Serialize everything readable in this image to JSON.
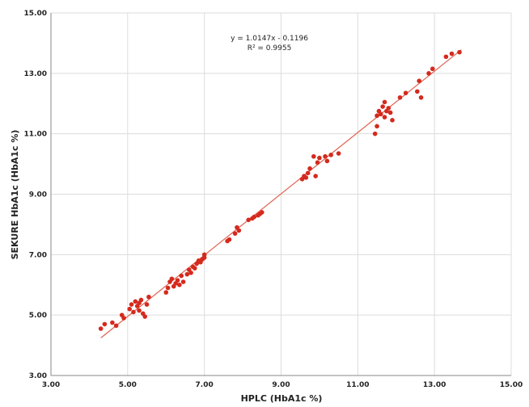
{
  "chart_data": {
    "type": "scatter",
    "title": "",
    "xlabel": "HPLC (HbA1c %)",
    "ylabel": "SEKURE HbA1c (HbA1c %)",
    "xlim": [
      3.0,
      15.0
    ],
    "ylim": [
      3.0,
      15.0
    ],
    "x_ticks": [
      "3.00",
      "5.00",
      "7.00",
      "9.00",
      "11.00",
      "13.00",
      "15.00"
    ],
    "y_ticks": [
      "3.00",
      "5.00",
      "7.00",
      "9.00",
      "11.00",
      "13.00",
      "15.00"
    ],
    "grid": true,
    "point_color": "#d42a1e",
    "line_color": "#e0624f",
    "annotations": [
      "y = 1.0147x - 0.1196",
      "R² = 0.9955"
    ],
    "trendline": {
      "slope": 1.0147,
      "intercept": -0.1196,
      "x_range": [
        4.3,
        13.7
      ]
    },
    "points": [
      [
        4.3,
        4.55
      ],
      [
        4.4,
        4.7
      ],
      [
        4.6,
        4.75
      ],
      [
        4.7,
        4.65
      ],
      [
        4.85,
        5.0
      ],
      [
        4.9,
        4.9
      ],
      [
        5.05,
        5.2
      ],
      [
        5.1,
        5.35
      ],
      [
        5.15,
        5.1
      ],
      [
        5.2,
        5.45
      ],
      [
        5.25,
        5.3
      ],
      [
        5.3,
        5.15
      ],
      [
        5.3,
        5.4
      ],
      [
        5.35,
        5.5
      ],
      [
        5.4,
        5.05
      ],
      [
        5.45,
        4.95
      ],
      [
        5.5,
        5.35
      ],
      [
        5.55,
        5.6
      ],
      [
        6.0,
        5.75
      ],
      [
        6.05,
        5.9
      ],
      [
        6.1,
        6.1
      ],
      [
        6.15,
        6.2
      ],
      [
        6.2,
        5.95
      ],
      [
        6.25,
        6.05
      ],
      [
        6.3,
        6.15
      ],
      [
        6.35,
        6.0
      ],
      [
        6.4,
        6.3
      ],
      [
        6.45,
        6.1
      ],
      [
        6.55,
        6.35
      ],
      [
        6.6,
        6.5
      ],
      [
        6.65,
        6.4
      ],
      [
        6.7,
        6.6
      ],
      [
        6.75,
        6.55
      ],
      [
        6.8,
        6.7
      ],
      [
        6.85,
        6.8
      ],
      [
        6.9,
        6.75
      ],
      [
        6.95,
        6.85
      ],
      [
        7.0,
        6.9
      ],
      [
        7.0,
        7.0
      ],
      [
        7.6,
        7.45
      ],
      [
        7.65,
        7.5
      ],
      [
        7.8,
        7.7
      ],
      [
        7.85,
        7.9
      ],
      [
        7.9,
        7.8
      ],
      [
        8.15,
        8.15
      ],
      [
        8.25,
        8.2
      ],
      [
        8.3,
        8.25
      ],
      [
        8.4,
        8.3
      ],
      [
        8.45,
        8.35
      ],
      [
        8.5,
        8.4
      ],
      [
        9.55,
        9.5
      ],
      [
        9.6,
        9.6
      ],
      [
        9.65,
        9.55
      ],
      [
        9.7,
        9.7
      ],
      [
        9.75,
        9.85
      ],
      [
        9.85,
        10.25
      ],
      [
        9.9,
        9.6
      ],
      [
        9.95,
        10.05
      ],
      [
        10.0,
        10.2
      ],
      [
        10.15,
        10.25
      ],
      [
        10.2,
        10.1
      ],
      [
        10.3,
        10.3
      ],
      [
        10.5,
        10.35
      ],
      [
        11.45,
        11.0
      ],
      [
        11.5,
        11.25
      ],
      [
        11.5,
        11.6
      ],
      [
        11.55,
        11.75
      ],
      [
        11.6,
        11.65
      ],
      [
        11.65,
        11.9
      ],
      [
        11.7,
        11.55
      ],
      [
        11.7,
        12.05
      ],
      [
        11.75,
        11.75
      ],
      [
        11.8,
        11.85
      ],
      [
        11.85,
        11.7
      ],
      [
        11.9,
        11.45
      ],
      [
        12.1,
        12.2
      ],
      [
        12.25,
        12.35
      ],
      [
        12.55,
        12.4
      ],
      [
        12.6,
        12.75
      ],
      [
        12.65,
        12.2
      ],
      [
        12.85,
        13.0
      ],
      [
        12.95,
        13.15
      ],
      [
        13.3,
        13.55
      ],
      [
        13.45,
        13.65
      ],
      [
        13.65,
        13.7
      ]
    ]
  }
}
